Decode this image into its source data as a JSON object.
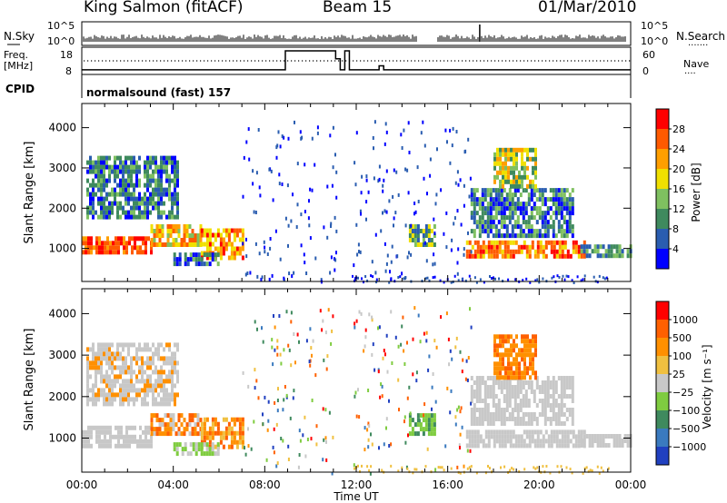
{
  "header": {
    "station": "King Salmon (fitACF)",
    "beam": "Beam 15",
    "date": "01/Mar/2010"
  },
  "status_panel": {
    "nsky_label": "N.Sky",
    "nsearch_label": "N.Search",
    "freq_label_line1": "Freq.",
    "freq_label_line2": "[MHz]",
    "nave_label": "Nave",
    "cpid_label": "CPID",
    "noise_ticks": [
      "10^5",
      "10^0"
    ],
    "freq_ticks": [
      "18",
      "8"
    ],
    "nave_ticks": [
      "60",
      "0"
    ],
    "cpid_text": "normalsound (fast) 157"
  },
  "chart_data": [
    {
      "type": "heatmap",
      "name": "power",
      "ylabel": "Slant Range [km]",
      "xlabel": "",
      "x_range_hours": [
        0,
        24
      ],
      "ylim": [
        180,
        4600
      ],
      "yticks": [
        "1000",
        "2000",
        "3000",
        "4000"
      ],
      "colorbar_label": "Power [dB]",
      "colorbar_ticks": [
        "4",
        "8",
        "12",
        "16",
        "20",
        "24",
        "28"
      ],
      "colors": [
        "#0000ff",
        "#2a5db0",
        "#3f8a5e",
        "#7fc060",
        "#f0e000",
        "#ff9f00",
        "#ff5a00",
        "#ff0000"
      ]
    },
    {
      "type": "heatmap",
      "name": "velocity",
      "ylabel": "Slant Range [km]",
      "xlabel": "Time UT",
      "x_range_hours": [
        0,
        24
      ],
      "ylim": [
        180,
        4600
      ],
      "yticks": [
        "1000",
        "2000",
        "3000",
        "4000"
      ],
      "xticks": [
        "00:00",
        "04:00",
        "08:00",
        "12:00",
        "16:00",
        "20:00",
        "00:00"
      ],
      "colorbar_label": "Velocity [m s⁻¹]",
      "colorbar_ticks": [
        "1000",
        "500",
        "100",
        "25",
        "−25",
        "−100",
        "−500",
        "−1000"
      ],
      "colors": [
        "#2040c0",
        "#3a7abf",
        "#3f8a5e",
        "#7fcc40",
        "#c8c8c8",
        "#f0c040",
        "#ff9000",
        "#ff6000",
        "#ff0000"
      ]
    }
  ]
}
